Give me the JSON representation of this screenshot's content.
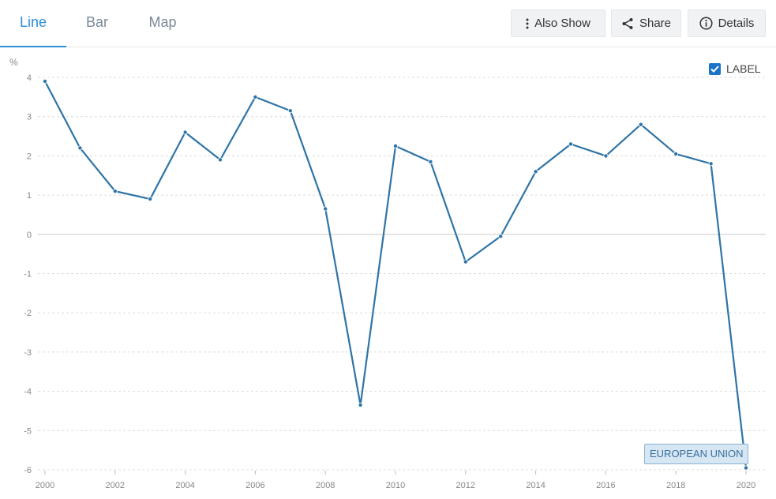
{
  "tabs": [
    {
      "label": "Line",
      "active": true
    },
    {
      "label": "Bar",
      "active": false
    },
    {
      "label": "Map",
      "active": false
    }
  ],
  "toolbar": {
    "also_show": "Also Show",
    "share": "Share",
    "details": "Details",
    "icons": [
      "more-vertical-icon",
      "share-icon",
      "info-icon"
    ]
  },
  "label_toggle": {
    "label": "LABEL",
    "checked": true
  },
  "series_label": "EUROPEAN UNION",
  "colors": {
    "accent": "#2a8ed8",
    "series": "#2f74a6",
    "grid": "#dcdcdc",
    "zero_line": "#cfcfcf",
    "tick_text": "#888888"
  },
  "chart_data": {
    "type": "line",
    "ylabel": "%",
    "ylim": [
      -6,
      4
    ],
    "yticks": [
      4,
      3,
      2,
      1,
      0,
      -1,
      -2,
      -3,
      -4,
      -5,
      -6
    ],
    "xlim": [
      2000,
      2020
    ],
    "xticks": [
      2000,
      2002,
      2004,
      2006,
      2008,
      2010,
      2012,
      2014,
      2016,
      2018,
      2020
    ],
    "grid": true,
    "series": [
      {
        "name": "EUROPEAN UNION",
        "x": [
          2000,
          2001,
          2002,
          2003,
          2004,
          2005,
          2006,
          2007,
          2008,
          2009,
          2010,
          2011,
          2012,
          2013,
          2014,
          2015,
          2016,
          2017,
          2018,
          2019,
          2020
        ],
        "values": [
          3.9,
          2.2,
          1.1,
          0.9,
          2.6,
          1.9,
          3.5,
          3.15,
          0.65,
          -4.35,
          2.25,
          1.85,
          -0.7,
          -0.05,
          1.6,
          2.3,
          2.0,
          2.8,
          2.05,
          1.8,
          -5.95
        ]
      }
    ]
  }
}
